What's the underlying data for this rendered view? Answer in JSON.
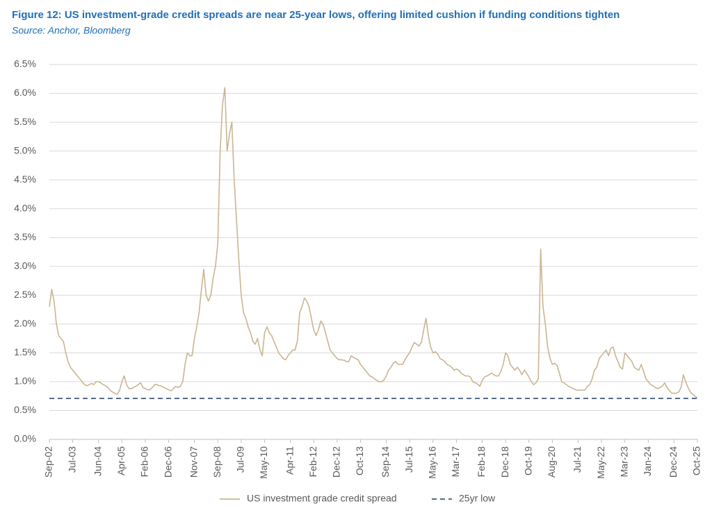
{
  "chart_data": {
    "type": "line",
    "title": "Figure 12: US investment-grade credit spreads are near 25-year lows, offering limited cushion if funding conditions tighten",
    "subtitle": "Source: Anchor, Bloomberg",
    "x": [
      "Sep-02",
      "Oct-02",
      "Nov-02",
      "Dec-02",
      "Jan-03",
      "Feb-03",
      "Mar-03",
      "Apr-03",
      "May-03",
      "Jun-03",
      "Jul-03",
      "Aug-03",
      "Sep-03",
      "Oct-03",
      "Nov-03",
      "Dec-03",
      "Jan-04",
      "Feb-04",
      "Mar-04",
      "Apr-04",
      "May-04",
      "Jun-04",
      "Jul-04",
      "Aug-04",
      "Sep-04",
      "Oct-04",
      "Nov-04",
      "Dec-04",
      "Jan-05",
      "Feb-05",
      "Mar-05",
      "Apr-05",
      "May-05",
      "Jun-05",
      "Jul-05",
      "Aug-05",
      "Sep-05",
      "Oct-05",
      "Nov-05",
      "Dec-05",
      "Jan-06",
      "Feb-06",
      "Mar-06",
      "Apr-06",
      "May-06",
      "Jun-06",
      "Jul-06",
      "Aug-06",
      "Sep-06",
      "Oct-06",
      "Nov-06",
      "Dec-06",
      "Jan-07",
      "Feb-07",
      "Mar-07",
      "Apr-07",
      "May-07",
      "Jun-07",
      "Jul-07",
      "Aug-07",
      "Sep-07",
      "Oct-07",
      "Nov-07",
      "Dec-07",
      "Jan-08",
      "Feb-08",
      "Mar-08",
      "Apr-08",
      "May-08",
      "Jun-08",
      "Jul-08",
      "Aug-08",
      "Sep-08",
      "Oct-08",
      "Nov-08",
      "Dec-08",
      "Jan-09",
      "Feb-09",
      "Mar-09",
      "Apr-09",
      "May-09",
      "Jun-09",
      "Jul-09",
      "Aug-09",
      "Sep-09",
      "Oct-09",
      "Nov-09",
      "Dec-09",
      "Jan-10",
      "Feb-10",
      "Mar-10",
      "Apr-10",
      "May-10",
      "Jun-10",
      "Jul-10",
      "Aug-10",
      "Sep-10",
      "Oct-10",
      "Nov-10",
      "Dec-10",
      "Jan-11",
      "Feb-11",
      "Mar-11",
      "Apr-11",
      "May-11",
      "Jun-11",
      "Jul-11",
      "Aug-11",
      "Sep-11",
      "Oct-11",
      "Nov-11",
      "Dec-11",
      "Jan-12",
      "Feb-12",
      "Mar-12",
      "Apr-12",
      "May-12",
      "Jun-12",
      "Jul-12",
      "Aug-12",
      "Sep-12",
      "Oct-12",
      "Nov-12",
      "Dec-12",
      "Jan-13",
      "Feb-13",
      "Mar-13",
      "Apr-13",
      "May-13",
      "Jun-13",
      "Jul-13",
      "Aug-13",
      "Sep-13",
      "Oct-13",
      "Nov-13",
      "Dec-13",
      "Jan-14",
      "Feb-14",
      "Mar-14",
      "Apr-14",
      "May-14",
      "Jun-14",
      "Jul-14",
      "Aug-14",
      "Sep-14",
      "Oct-14",
      "Nov-14",
      "Dec-14",
      "Jan-15",
      "Feb-15",
      "Mar-15",
      "Apr-15",
      "May-15",
      "Jun-15",
      "Jul-15",
      "Aug-15",
      "Sep-15",
      "Oct-15",
      "Nov-15",
      "Dec-15",
      "Jan-16",
      "Feb-16",
      "Mar-16",
      "Apr-16",
      "May-16",
      "Jun-16",
      "Jul-16",
      "Aug-16",
      "Sep-16",
      "Oct-16",
      "Nov-16",
      "Dec-16",
      "Jan-17",
      "Feb-17",
      "Mar-17",
      "Apr-17",
      "May-17",
      "Jun-17",
      "Jul-17",
      "Aug-17",
      "Sep-17",
      "Oct-17",
      "Nov-17",
      "Dec-17",
      "Jan-18",
      "Feb-18",
      "Mar-18",
      "Apr-18",
      "May-18",
      "Jun-18",
      "Jul-18",
      "Aug-18",
      "Sep-18",
      "Oct-18",
      "Nov-18",
      "Dec-18",
      "Jan-19",
      "Feb-19",
      "Mar-19",
      "Apr-19",
      "May-19",
      "Jun-19",
      "Jul-19",
      "Aug-19",
      "Sep-19",
      "Oct-19",
      "Nov-19",
      "Dec-19",
      "Jan-20",
      "Feb-20",
      "Mar-20",
      "Apr-20",
      "May-20",
      "Jun-20",
      "Jul-20",
      "Aug-20",
      "Sep-20",
      "Oct-20",
      "Nov-20",
      "Dec-20",
      "Jan-21",
      "Feb-21",
      "Mar-21",
      "Apr-21",
      "May-21",
      "Jun-21",
      "Jul-21",
      "Aug-21",
      "Sep-21",
      "Oct-21",
      "Nov-21",
      "Dec-21",
      "Jan-22",
      "Feb-22",
      "Mar-22",
      "Apr-22",
      "May-22",
      "Jun-22",
      "Jul-22",
      "Aug-22",
      "Sep-22",
      "Oct-22",
      "Nov-22",
      "Dec-22",
      "Jan-23",
      "Feb-23",
      "Mar-23",
      "Apr-23",
      "May-23",
      "Jun-23",
      "Jul-23",
      "Aug-23",
      "Sep-23",
      "Oct-23",
      "Nov-23",
      "Dec-23",
      "Jan-24",
      "Feb-24",
      "Mar-24",
      "Apr-24",
      "May-24",
      "Jun-24",
      "Jul-24",
      "Aug-24",
      "Sep-24",
      "Oct-24",
      "Nov-24",
      "Dec-24",
      "Jan-25",
      "Feb-25",
      "Mar-25",
      "Apr-25",
      "May-25",
      "Jun-25",
      "Jul-25",
      "Aug-25",
      "Sep-25",
      "Oct-25"
    ],
    "series": [
      {
        "name": "US investment grade credit spread",
        "color": "#c9b593",
        "values": [
          2.3,
          2.6,
          2.4,
          2.0,
          1.8,
          1.75,
          1.7,
          1.5,
          1.35,
          1.25,
          1.2,
          1.15,
          1.1,
          1.05,
          1.0,
          0.95,
          0.93,
          0.95,
          0.97,
          0.95,
          1.0,
          1.0,
          0.98,
          0.95,
          0.93,
          0.9,
          0.85,
          0.82,
          0.8,
          0.78,
          0.85,
          1.0,
          1.1,
          0.95,
          0.88,
          0.88,
          0.9,
          0.92,
          0.95,
          0.98,
          0.9,
          0.88,
          0.86,
          0.86,
          0.9,
          0.95,
          0.95,
          0.93,
          0.92,
          0.9,
          0.88,
          0.86,
          0.84,
          0.88,
          0.92,
          0.9,
          0.92,
          1.0,
          1.3,
          1.5,
          1.45,
          1.45,
          1.75,
          1.95,
          2.2,
          2.6,
          2.95,
          2.5,
          2.4,
          2.5,
          2.8,
          3.0,
          3.4,
          5.0,
          5.8,
          6.1,
          5.0,
          5.3,
          5.5,
          4.5,
          3.8,
          3.1,
          2.5,
          2.2,
          2.1,
          1.95,
          1.85,
          1.7,
          1.65,
          1.75,
          1.55,
          1.45,
          1.85,
          1.95,
          1.85,
          1.8,
          1.7,
          1.6,
          1.5,
          1.45,
          1.4,
          1.38,
          1.45,
          1.5,
          1.55,
          1.55,
          1.7,
          2.2,
          2.3,
          2.45,
          2.4,
          2.3,
          2.1,
          1.9,
          1.8,
          1.9,
          2.05,
          2.0,
          1.85,
          1.7,
          1.55,
          1.5,
          1.45,
          1.4,
          1.38,
          1.38,
          1.37,
          1.35,
          1.35,
          1.45,
          1.42,
          1.4,
          1.38,
          1.3,
          1.25,
          1.2,
          1.15,
          1.1,
          1.08,
          1.05,
          1.02,
          1.0,
          1.0,
          1.03,
          1.1,
          1.2,
          1.25,
          1.32,
          1.35,
          1.3,
          1.3,
          1.3,
          1.38,
          1.45,
          1.5,
          1.6,
          1.68,
          1.65,
          1.62,
          1.68,
          1.9,
          2.1,
          1.8,
          1.6,
          1.5,
          1.52,
          1.48,
          1.4,
          1.38,
          1.35,
          1.3,
          1.28,
          1.25,
          1.2,
          1.22,
          1.2,
          1.15,
          1.12,
          1.1,
          1.1,
          1.08,
          1.0,
          0.98,
          0.96,
          0.92,
          1.02,
          1.08,
          1.1,
          1.12,
          1.15,
          1.12,
          1.1,
          1.1,
          1.18,
          1.3,
          1.5,
          1.45,
          1.3,
          1.25,
          1.2,
          1.25,
          1.2,
          1.12,
          1.2,
          1.15,
          1.08,
          1.0,
          0.95,
          0.98,
          1.05,
          3.3,
          2.3,
          2.0,
          1.6,
          1.4,
          1.3,
          1.32,
          1.28,
          1.15,
          1.0,
          0.98,
          0.95,
          0.92,
          0.9,
          0.88,
          0.86,
          0.85,
          0.86,
          0.85,
          0.86,
          0.92,
          0.95,
          1.05,
          1.2,
          1.25,
          1.4,
          1.45,
          1.5,
          1.55,
          1.45,
          1.58,
          1.6,
          1.45,
          1.35,
          1.25,
          1.22,
          1.5,
          1.45,
          1.4,
          1.35,
          1.25,
          1.22,
          1.2,
          1.3,
          1.18,
          1.05,
          1.0,
          0.95,
          0.93,
          0.9,
          0.88,
          0.9,
          0.92,
          0.98,
          0.9,
          0.85,
          0.8,
          0.8,
          0.8,
          0.82,
          0.9,
          1.12,
          1.0,
          0.9,
          0.82,
          0.78,
          0.75,
          0.72
        ]
      }
    ],
    "reference_lines": [
      {
        "name": "25yr low",
        "value": 0.71,
        "color": "#1f3864",
        "dashed": true
      }
    ],
    "xticks": [
      "Sep-02",
      "Jul-03",
      "Jun-04",
      "Apr-05",
      "Feb-06",
      "Dec-06",
      "Nov-07",
      "Sep-08",
      "Jul-09",
      "May-10",
      "Apr-11",
      "Feb-12",
      "Dec-12",
      "Oct-13",
      "Sep-14",
      "Jul-15",
      "May-16",
      "Mar-17",
      "Feb-18",
      "Dec-18",
      "Oct-19",
      "Aug-20",
      "Jul-21",
      "May-22",
      "Mar-23",
      "Jan-24",
      "Dec-24",
      "Oct-25"
    ],
    "ylim": [
      0,
      6.5
    ],
    "yticks": [
      {
        "value": 0,
        "label": "0.0%"
      },
      {
        "value": 0.5,
        "label": "0.5%"
      },
      {
        "value": 1,
        "label": "1.0%"
      },
      {
        "value": 1.5,
        "label": "1.5%"
      },
      {
        "value": 2,
        "label": "2.0%"
      },
      {
        "value": 2.5,
        "label": "2.5%"
      },
      {
        "value": 3,
        "label": "3.0%"
      },
      {
        "value": 3.5,
        "label": "3.5%"
      },
      {
        "value": 4,
        "label": "4.0%"
      },
      {
        "value": 4.5,
        "label": "4.5%"
      },
      {
        "value": 5,
        "label": "5.0%"
      },
      {
        "value": 5.5,
        "label": "5.5%"
      },
      {
        "value": 6,
        "label": "6.0%"
      },
      {
        "value": 6.5,
        "label": "6.5%"
      }
    ],
    "grid": true,
    "legend": "bottom"
  }
}
